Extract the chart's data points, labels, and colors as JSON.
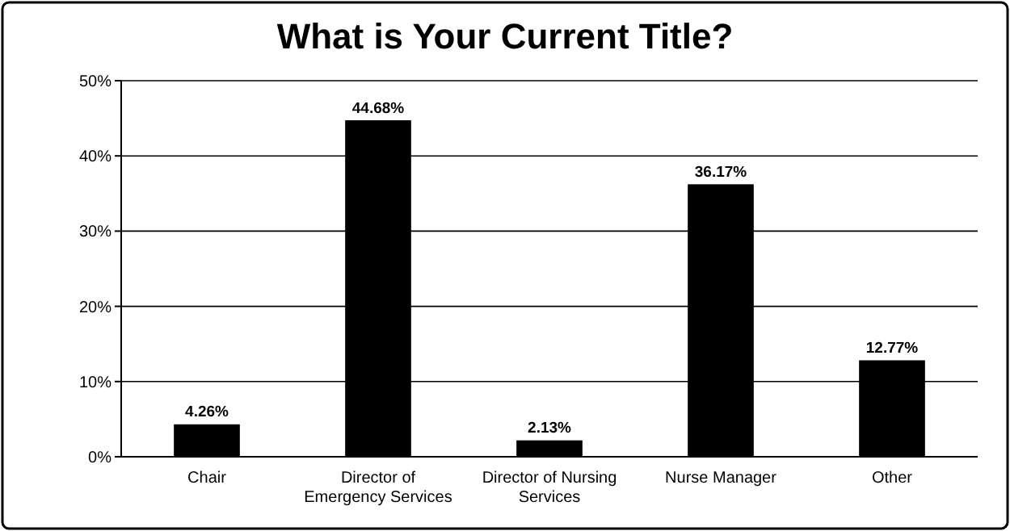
{
  "chart_data": {
    "type": "bar",
    "title": "What is Your Current Title?",
    "categories": [
      "Chair",
      "Director of Emergency Services",
      "Director of Nursing Services",
      "Nurse Manager",
      "Other"
    ],
    "values": [
      4.26,
      44.68,
      2.13,
      36.17,
      12.77
    ],
    "value_labels": [
      "4.26%",
      "44.68%",
      "2.13%",
      "36.17%",
      "12.77%"
    ],
    "color": "#000000",
    "ylim": [
      0,
      50
    ],
    "yticks": [
      {
        "value": 0,
        "label": "0%"
      },
      {
        "value": 10,
        "label": "10%"
      },
      {
        "value": 20,
        "label": "20%"
      },
      {
        "value": 30,
        "label": "30%"
      },
      {
        "value": 40,
        "label": "40%"
      },
      {
        "value": 50,
        "label": "50%"
      }
    ],
    "grid": "y"
  }
}
